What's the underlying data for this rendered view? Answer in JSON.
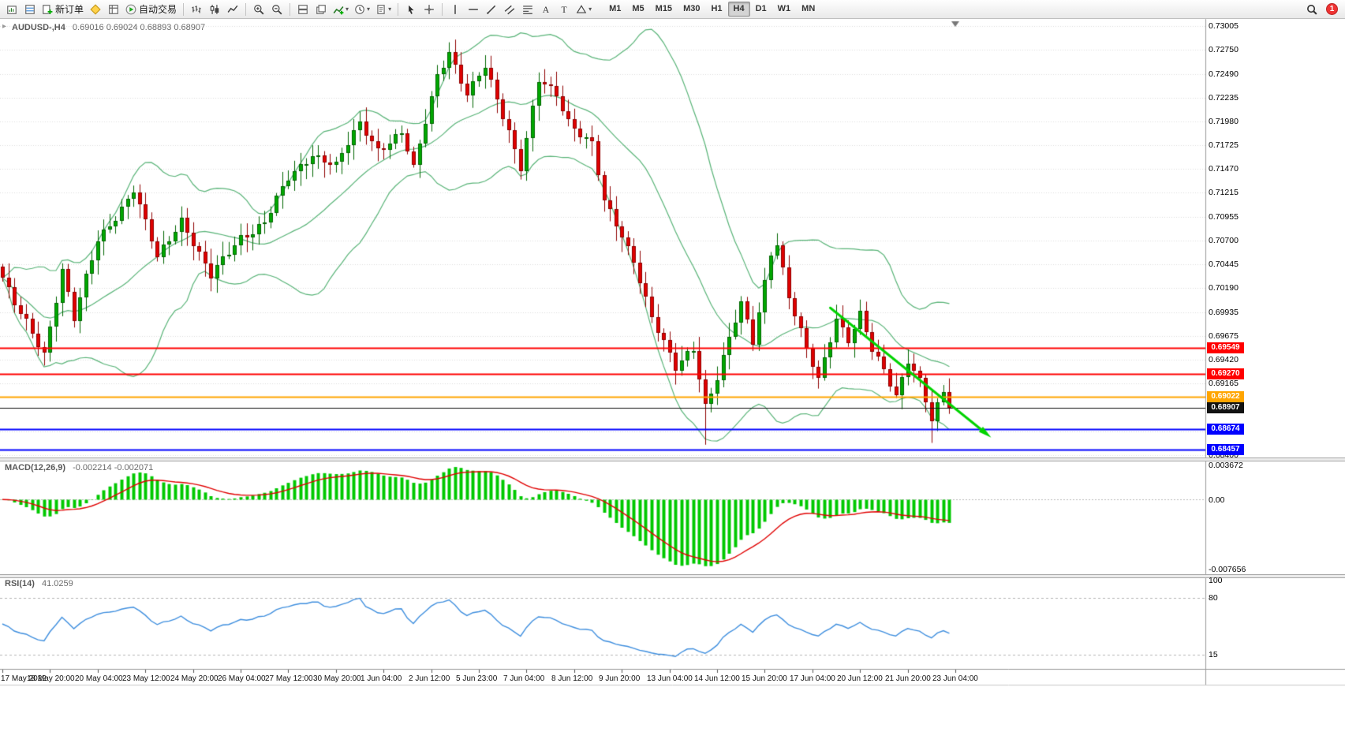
{
  "toolbar": {
    "buttons": [
      {
        "name": "new-chart",
        "icon": "chart-window"
      },
      {
        "name": "market-watch",
        "icon": "quotes"
      },
      {
        "name": "new-order",
        "icon": "new-order",
        "label": "新订单"
      },
      {
        "name": "metaeditor",
        "icon": "metaeditor"
      },
      {
        "name": "data-window",
        "icon": "data-window"
      },
      {
        "name": "autotrading",
        "icon": "autotrading",
        "label": "自动交易"
      },
      {
        "sep": true
      },
      {
        "name": "bar-chart",
        "icon": "bars"
      },
      {
        "name": "candlestick-chart",
        "icon": "candles"
      },
      {
        "name": "line-chart",
        "icon": "linechart"
      },
      {
        "sep": true
      },
      {
        "name": "zoom-in",
        "icon": "zoom-in"
      },
      {
        "name": "zoom-out",
        "icon": "zoom-out"
      },
      {
        "sep": true
      },
      {
        "name": "tile-windows",
        "icon": "tile"
      },
      {
        "name": "cascade-windows",
        "icon": "cascade"
      },
      {
        "name": "indicators",
        "icon": "indicators",
        "caret": true
      },
      {
        "name": "periods",
        "icon": "clock",
        "caret": true
      },
      {
        "name": "templates",
        "icon": "template",
        "caret": true
      },
      {
        "sep": true
      },
      {
        "name": "cursor",
        "icon": "cursor"
      },
      {
        "name": "crosshair",
        "icon": "crosshair"
      },
      {
        "sep": true
      },
      {
        "name": "vertical-line",
        "icon": "vline"
      },
      {
        "name": "horizontal-line",
        "icon": "hline"
      },
      {
        "name": "trendline",
        "icon": "trend"
      },
      {
        "name": "equidistant-channel",
        "icon": "channel"
      },
      {
        "name": "fibonacci-retracement",
        "icon": "fibo"
      },
      {
        "name": "text",
        "icon": "textA"
      },
      {
        "name": "text-label",
        "icon": "textT"
      },
      {
        "name": "shapes",
        "icon": "shapes",
        "caret": true
      }
    ],
    "timeframes": [
      "M1",
      "M5",
      "M15",
      "M30",
      "H1",
      "H4",
      "D1",
      "W1",
      "MN"
    ],
    "active_timeframe": "H4",
    "notification_count": "1"
  },
  "chart_data": {
    "type": "candlestick",
    "symbol_period_label": "AUDUSD-,H4",
    "ohlc_values": "0.69016 0.69024 0.68893 0.68907",
    "price_axis": {
      "top": 0.73064,
      "bottom": 0.6839,
      "tick_labels": [
        "0.73005",
        "0.72750",
        "0.72490",
        "0.72235",
        "0.71980",
        "0.71725",
        "0.71470",
        "0.71215",
        "0.70955",
        "0.70700",
        "0.70445",
        "0.70190",
        "0.69935",
        "0.69675",
        "0.69420",
        "0.69165",
        "0.68910",
        "0.68655",
        "0.68400"
      ]
    },
    "date_labels": [
      "17 May 2022",
      "18 May 20:00",
      "20 May 04:00",
      "23 May 12:00",
      "24 May 20:00",
      "26 May 04:00",
      "27 May 12:00",
      "30 May 20:00",
      "1 Jun 04:00",
      "2 Jun 12:00",
      "5 Jun 23:00",
      "7 Jun 04:00",
      "8 Jun 12:00",
      "9 Jun 20:00",
      "13 Jun 04:00",
      "14 Jun 12:00",
      "15 Jun 20:00",
      "17 Jun 04:00",
      "20 Jun 12:00",
      "21 Jun 20:00",
      "23 Jun 04:00"
    ],
    "candles": {
      "count": 160,
      "spacing_px": 7.55,
      "render_seed": 7,
      "close_control_points": [
        [
          0,
          0.703
        ],
        [
          2,
          0.7
        ],
        [
          4,
          0.698
        ],
        [
          7,
          0.695
        ],
        [
          10,
          0.704
        ],
        [
          12,
          0.6985
        ],
        [
          16,
          0.707
        ],
        [
          22,
          0.7125
        ],
        [
          26,
          0.705
        ],
        [
          30,
          0.7095
        ],
        [
          35,
          0.703
        ],
        [
          40,
          0.7075
        ],
        [
          44,
          0.709
        ],
        [
          48,
          0.7135
        ],
        [
          52,
          0.7165
        ],
        [
          56,
          0.715
        ],
        [
          60,
          0.7195
        ],
        [
          63,
          0.717
        ],
        [
          67,
          0.7185
        ],
        [
          69,
          0.7145
        ],
        [
          73,
          0.725
        ],
        [
          75,
          0.7275
        ],
        [
          78,
          0.7225
        ],
        [
          81,
          0.7255
        ],
        [
          85,
          0.719
        ],
        [
          87,
          0.715
        ],
        [
          90,
          0.724
        ],
        [
          93,
          0.7225
        ],
        [
          95,
          0.72
        ],
        [
          99,
          0.7175
        ],
        [
          101,
          0.711
        ],
        [
          103,
          0.7085
        ],
        [
          106,
          0.705
        ],
        [
          109,
          0.699
        ],
        [
          111,
          0.696
        ],
        [
          113,
          0.693
        ],
        [
          116,
          0.6955
        ],
        [
          118,
          0.6895
        ],
        [
          120,
          0.6925
        ],
        [
          122,
          0.6965
        ],
        [
          124,
          0.7
        ],
        [
          126,
          0.696
        ],
        [
          129,
          0.706
        ],
        [
          130,
          0.707
        ],
        [
          132,
          0.701
        ],
        [
          135,
          0.695
        ],
        [
          137,
          0.692
        ],
        [
          140,
          0.699
        ],
        [
          142,
          0.6965
        ],
        [
          144,
          0.699
        ],
        [
          146,
          0.695
        ],
        [
          148,
          0.693
        ],
        [
          150,
          0.6905
        ],
        [
          152,
          0.6945
        ],
        [
          154,
          0.692
        ],
        [
          156,
          0.6875
        ],
        [
          158,
          0.6905
        ],
        [
          159,
          0.68907
        ]
      ],
      "wick_overrides": [
        {
          "i": 7,
          "low": 0.6936
        },
        {
          "i": 75,
          "high": 0.7283
        },
        {
          "i": 118,
          "low": 0.6851
        },
        {
          "i": 130,
          "high": 0.7078
        },
        {
          "i": 156,
          "low": 0.6853
        }
      ]
    },
    "bollinger": {
      "period": 20,
      "deviation": 2
    },
    "horizontal_lines": [
      {
        "label": "0.69549",
        "price": 0.69549,
        "color": "#FF0000",
        "width": 2
      },
      {
        "label": "0.69270",
        "price": 0.6927,
        "color": "#FF0000",
        "width": 2
      },
      {
        "label": "0.69022",
        "price": 0.69022,
        "color": "#FFA500",
        "width": 2
      },
      {
        "label": "0.68907",
        "price": 0.68907,
        "color": "#111111",
        "width": 1
      },
      {
        "label": "0.68674",
        "price": 0.68674,
        "color": "#0000FF",
        "width": 2
      },
      {
        "label": "0.68457",
        "price": 0.68457,
        "color": "#0000FF",
        "width": 2
      }
    ],
    "trendline": {
      "i1": 139,
      "p1": 0.6998,
      "i2": 165,
      "p2": 0.6864,
      "color": "#00D300",
      "width": 3
    },
    "shift_marker_index": 160,
    "macd": {
      "label": "MACD(12,26,9)",
      "values_label": "-0.002214 -0.002071",
      "fast": 12,
      "slow": 26,
      "signal": 9,
      "axis_labels": [
        "0.003672",
        "0.00",
        "-0.007656"
      ]
    },
    "rsi": {
      "label": "RSI(14)",
      "value_label": "41.0259",
      "period": 14,
      "levels": [
        80,
        15
      ],
      "axis_labels": [
        {
          "text": "100",
          "value": 100
        },
        {
          "text": "80",
          "value": 80
        },
        {
          "text": "15",
          "value": 15
        }
      ]
    },
    "colors": {
      "bull": "#00A800",
      "bull_dark": "#006600",
      "bear": "#E00000",
      "bear_dark": "#8F0000",
      "bollinger": "#58B377",
      "grid": "#DCDCDC",
      "macd_hist": "#00C800",
      "macd_signal": "#E00000",
      "rsi_line": "#3E8EDE",
      "trendline": "#00D300"
    }
  }
}
